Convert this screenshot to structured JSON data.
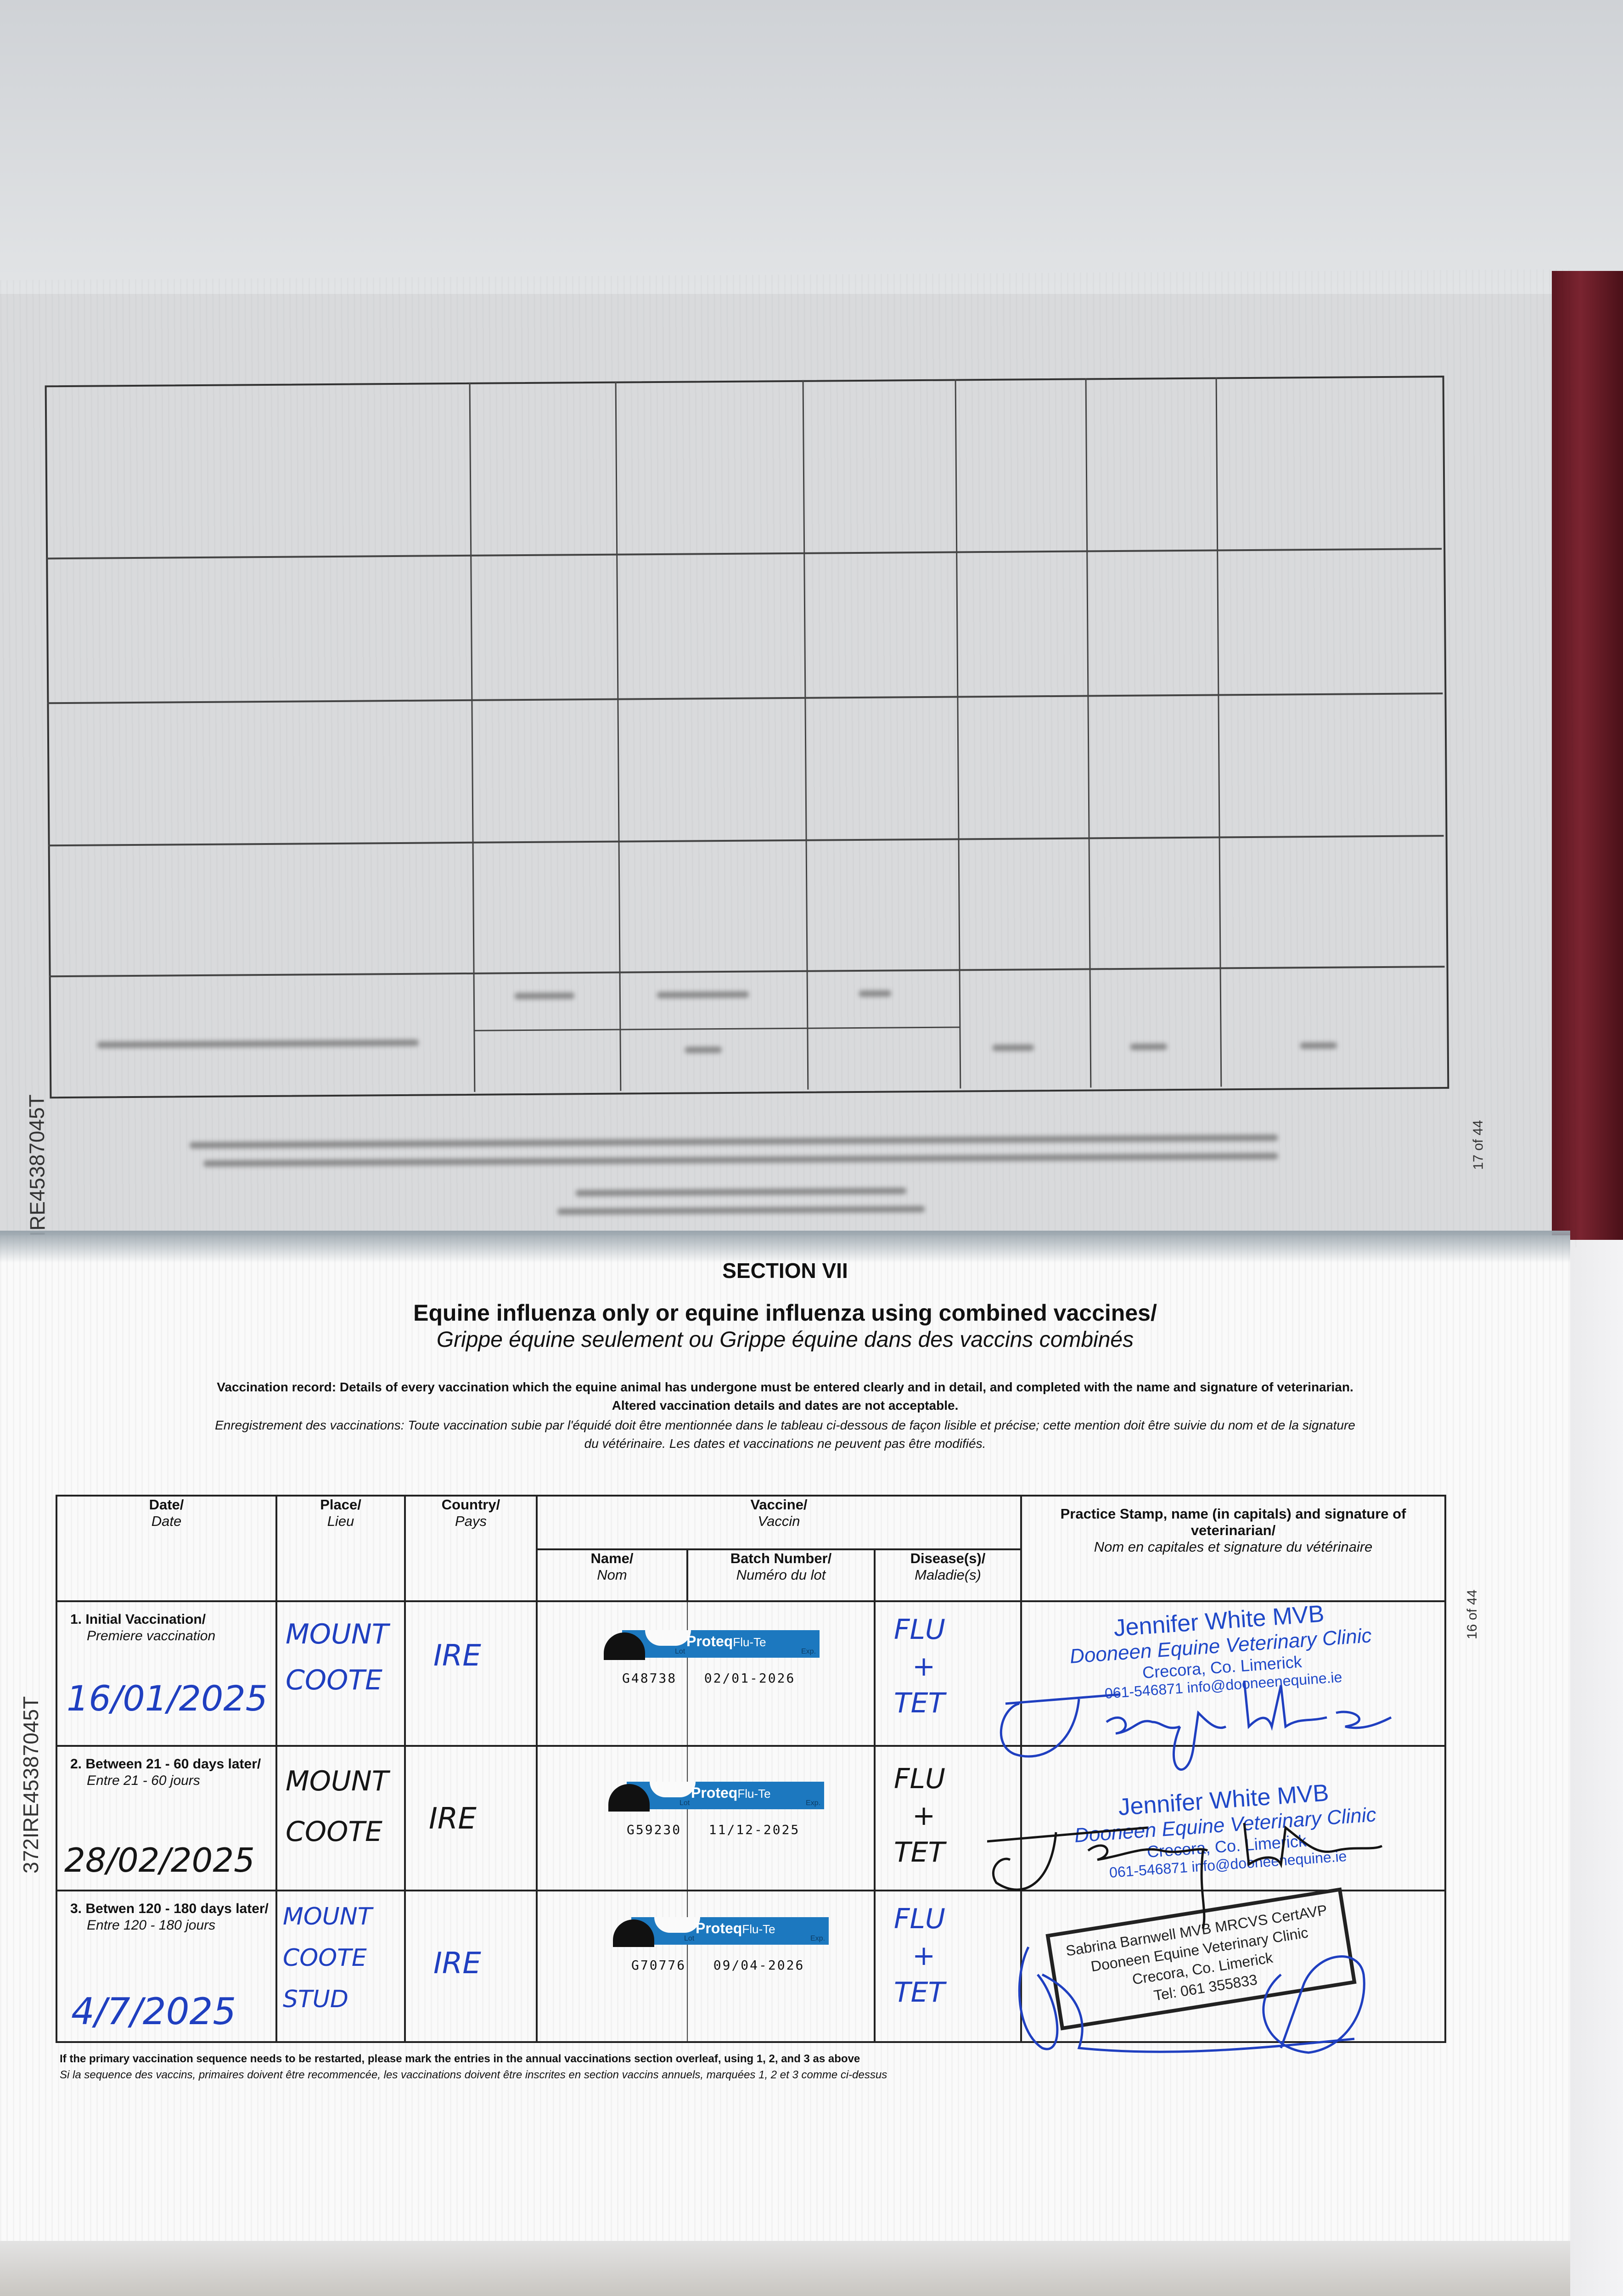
{
  "document": {
    "passport_id": "372IRE45387045T",
    "upper_page": {
      "page_number": "17 of 44"
    },
    "lower_page": {
      "page_number": "16 of 44",
      "section": "SECTION VII",
      "title_en": "Equine influenza only or equine influenza using combined vaccines/",
      "title_fr": "Grippe équine seulement ou Grippe équine dans des vaccins combinés",
      "instructions_en_1": "Vaccination record: Details of every vaccination which the equine animal has undergone must be entered clearly and in detail, and completed with the name and signature of veterinarian.",
      "instructions_en_2": "Altered vaccination details and dates are not acceptable.",
      "instructions_fr_1": "Enregistrement des vaccinations: Toute vaccination subie par l'équidé doit être mentionnée dans le tableau ci-dessous de façon lisible et précise; cette mention doit être suivie du nom et de la signature",
      "instructions_fr_2": "du vétérinaire. Les dates et vaccinations ne peuvent pas être modifiés.",
      "headers": {
        "date": {
          "en": "Date/",
          "fr": "Date"
        },
        "place": {
          "en": "Place/",
          "fr": "Lieu"
        },
        "country": {
          "en": "Country/",
          "fr": "Pays"
        },
        "vaccine": {
          "en": "Vaccine/",
          "fr": "Vaccin"
        },
        "name": {
          "en": "Name/",
          "fr": "Nom"
        },
        "batch": {
          "en": "Batch Number/",
          "fr": "Numéro du lot"
        },
        "disease": {
          "en": "Disease(s)/",
          "fr": "Maladie(s)"
        },
        "stamp": {
          "en": "Practice Stamp, name (in capitals) and signature of veterinarian/",
          "fr": "Nom en capitales et signature du vétérinaire"
        }
      },
      "rows": [
        {
          "label_en": "1. Initial Vaccination/",
          "label_fr": "Premiere vaccination",
          "date": "16/01/2025",
          "place_1": "MOUNT",
          "place_2": "COOTE",
          "place_3": "",
          "country": "IRE",
          "vaccine_brand": "Proteq",
          "vaccine_product": "Flu-Te",
          "lot_label": "Lot",
          "exp_label": "Exp.",
          "batch": "G48738",
          "expiry": "02/01-2026",
          "disease_1": "FLU",
          "disease_2": "+",
          "disease_3": "TET",
          "ink": "#1f3fc0",
          "stamp": {
            "name": "Jennifer White MVB",
            "clinic": "Dooneen Equine Veterinary Clinic",
            "address": "Crecora, Co. Limerick",
            "contact": "061-546871 info@dooneenequine.ie"
          }
        },
        {
          "label_en": "2. Between 21 - 60 days later/",
          "label_fr": "Entre 21 - 60 jours",
          "date": "28/02/2025",
          "place_1": "MOUNT",
          "place_2": "COOTE",
          "place_3": "",
          "country": "IRE",
          "vaccine_brand": "Proteq",
          "vaccine_product": "Flu-Te",
          "lot_label": "Lot",
          "exp_label": "Exp.",
          "batch": "G59230",
          "expiry": "11/12-2025",
          "disease_1": "FLU",
          "disease_2": "+",
          "disease_3": "TET",
          "ink": "#151515",
          "stamp": {
            "name": "Jennifer White MVB",
            "clinic": "Dooneen Equine Veterinary Clinic",
            "address": "Crecora, Co. Limerick",
            "contact": "061-546871 info@dooneenequine.ie"
          }
        },
        {
          "label_en": "3. Betwen 120 - 180 days later/",
          "label_fr": "Entre 120 - 180 jours",
          "date": "4/7/2025",
          "place_1": "MOUNT",
          "place_2": "COOTE",
          "place_3": "STUD",
          "country": "IRE",
          "vaccine_brand": "Proteq",
          "vaccine_product": "Flu-Te",
          "lot_label": "Lot",
          "exp_label": "Exp.",
          "batch": "G70776",
          "expiry": "09/04-2026",
          "disease_1": "FLU",
          "disease_2": "+",
          "disease_3": "TET",
          "ink": "#1f3fc0",
          "stamp": {
            "name": "Sabrina Barnwell MVB MRCVS CertAVP",
            "clinic": "Dooneen Equine Veterinary Clinic",
            "address": "Crecora, Co. Limerick",
            "contact": "Tel: 061 355833"
          }
        }
      ],
      "footnote_en": "If the primary vaccination sequence needs to be restarted, please mark the entries in the annual vaccinations section overleaf, using 1, 2, and 3 as above",
      "footnote_fr": "Si la sequence des vaccins, primaires doivent être recommencée, les vaccinations doivent être inscrites en section vaccins annuels, marquées 1, 2 et 3 comme ci-dessus"
    }
  },
  "colors": {
    "ink_blue": "#1f3fc0",
    "label_blue": "#1c78bf",
    "cover": "#6a1c26"
  }
}
